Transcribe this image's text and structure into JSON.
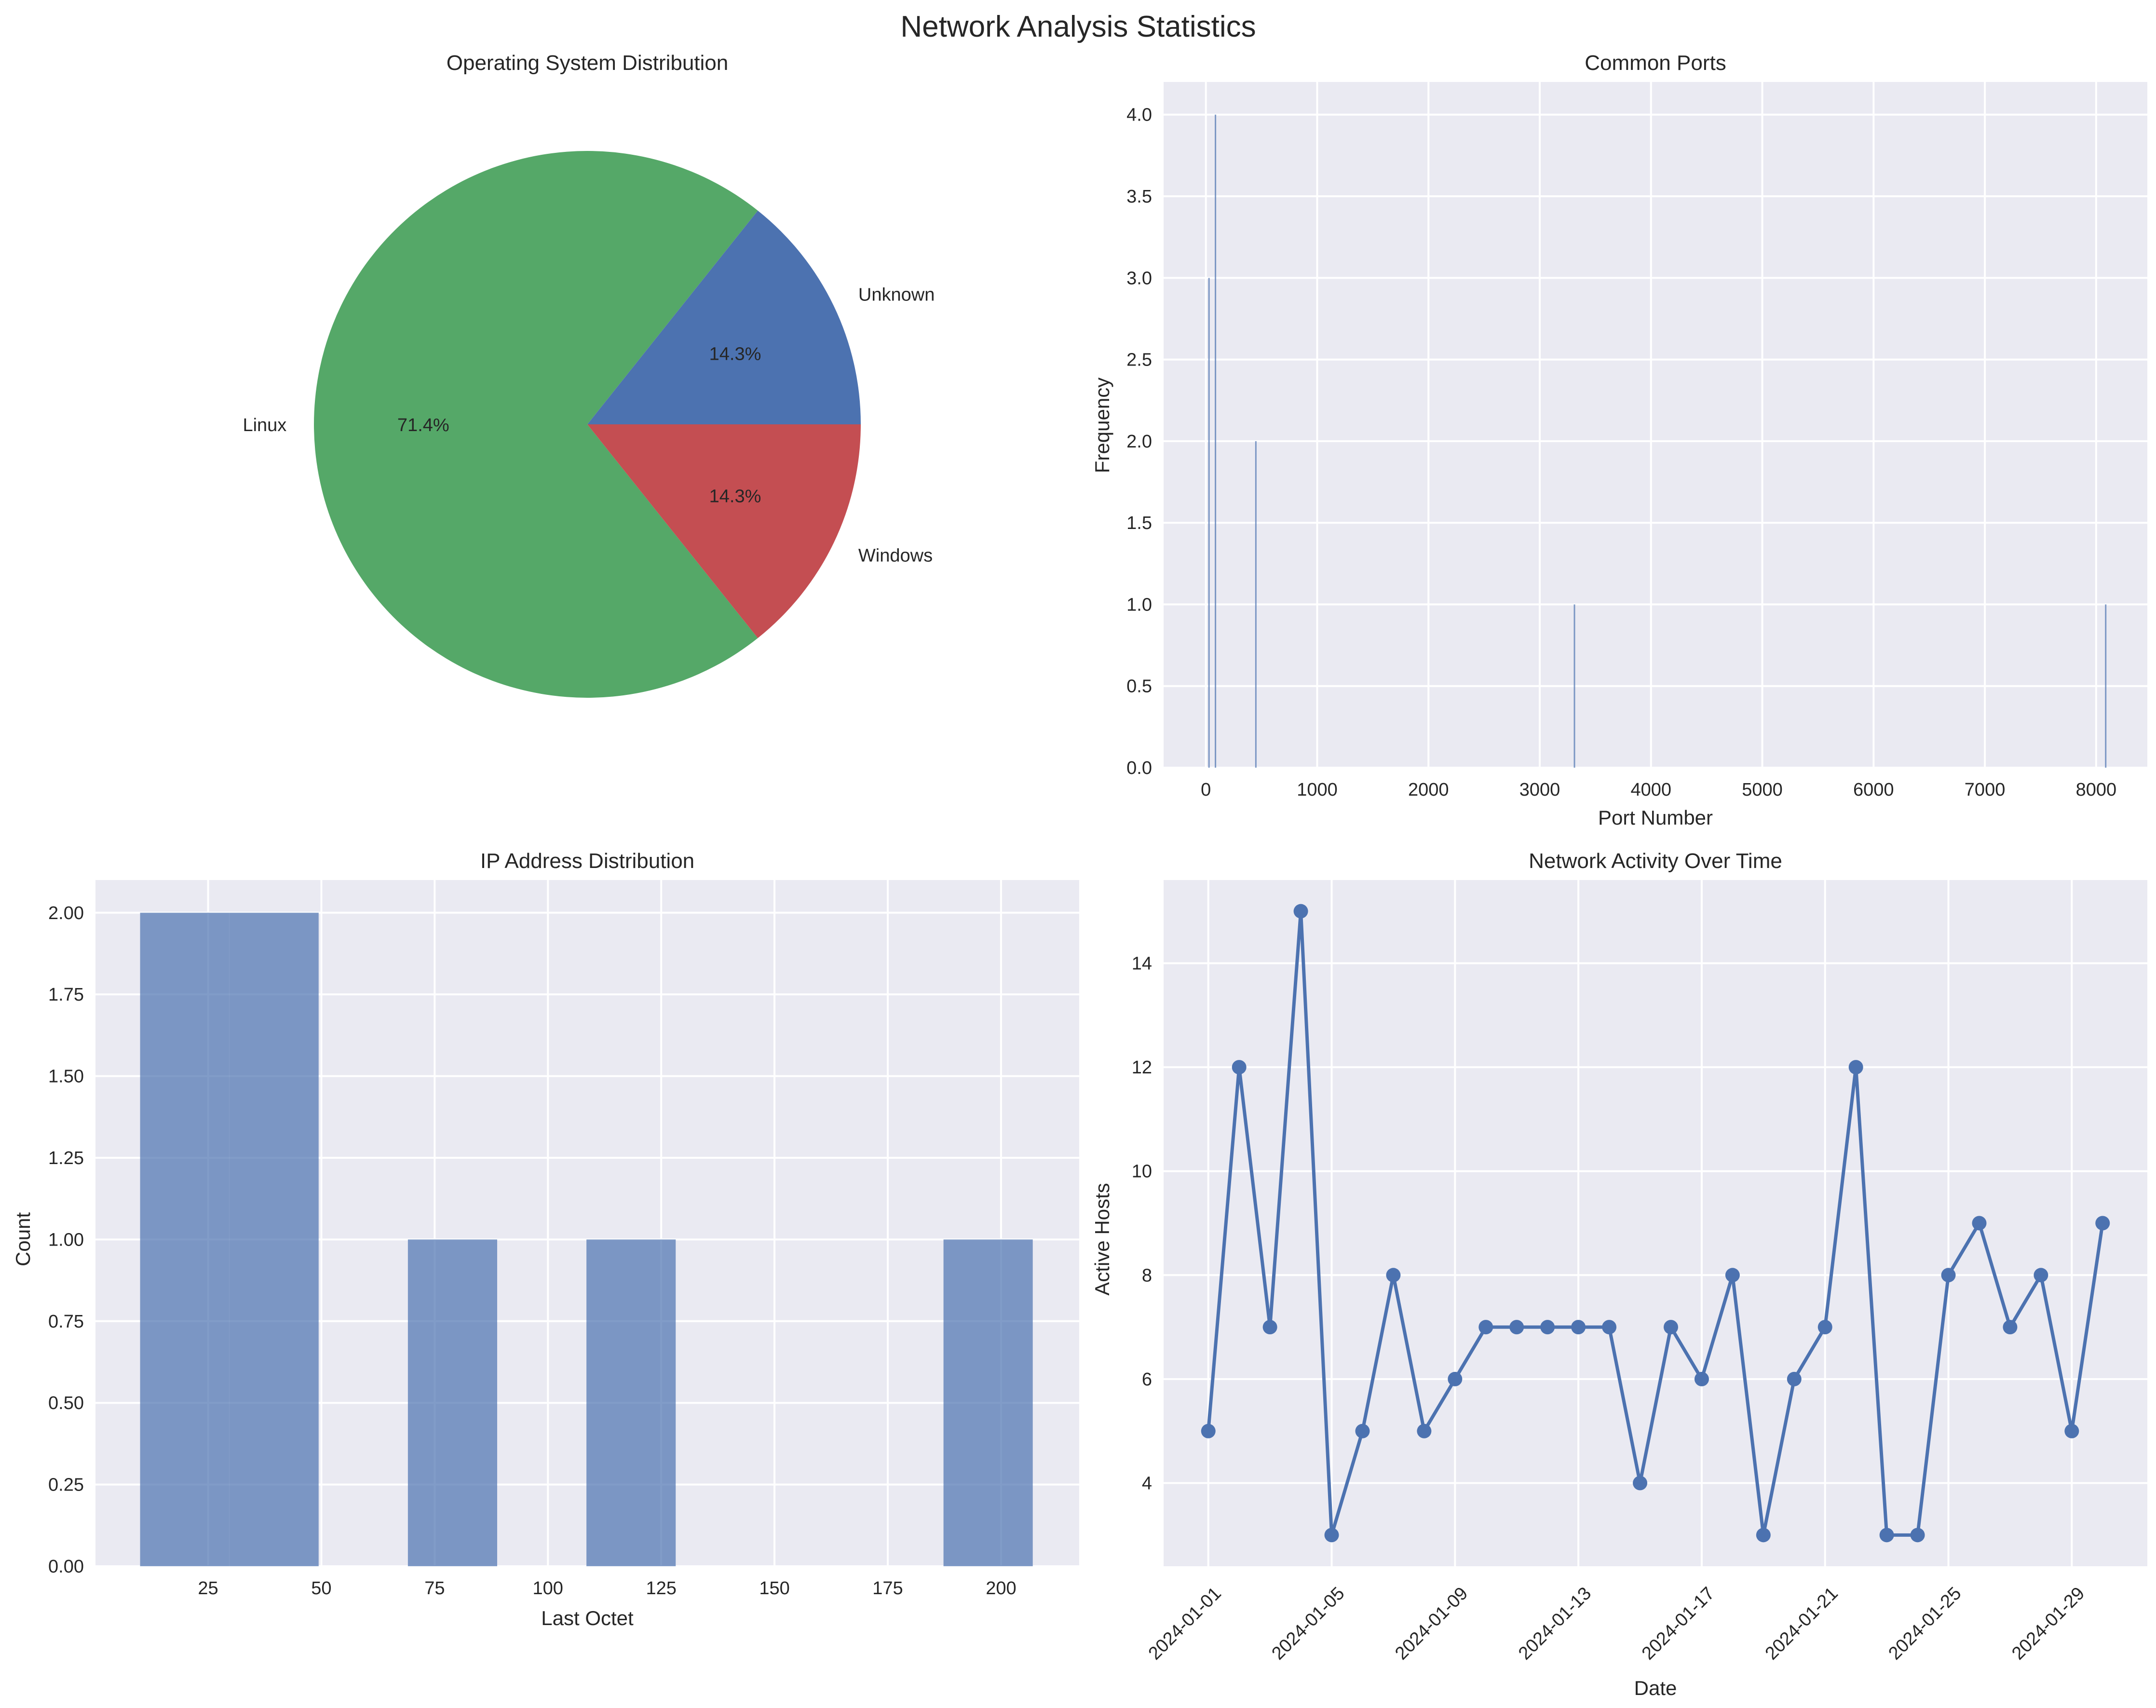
{
  "figure_title": "Network Analysis Statistics",
  "colors": {
    "panel_bg": "#EAEAF2",
    "grid": "#FFFFFF",
    "text": "#262626",
    "blue": "#4C72B0",
    "green": "#55A868",
    "red": "#C44E52"
  },
  "chart_data": [
    {
      "type": "pie",
      "title": "Operating System Distribution",
      "labels": [
        "Unknown",
        "Linux",
        "Windows"
      ],
      "values": [
        1,
        5,
        1
      ],
      "autopct": [
        "14.3%",
        "71.4%",
        "14.3%"
      ],
      "colors": [
        "#4C72B0",
        "#55A868",
        "#C44E52"
      ],
      "start_angle": 0
    },
    {
      "type": "bar",
      "title": "Common Ports",
      "xlabel": "Port Number",
      "ylabel": "Frequency",
      "xlim": [
        -380,
        8460
      ],
      "ylim": [
        0,
        4.2
      ],
      "xticks": [
        0,
        1000,
        2000,
        3000,
        4000,
        5000,
        6000,
        7000,
        8000
      ],
      "yticks": [
        0.0,
        0.5,
        1.0,
        1.5,
        2.0,
        2.5,
        3.0,
        3.5,
        4.0
      ],
      "ytick_labels": [
        "0.0",
        "0.5",
        "1.0",
        "1.5",
        "2.0",
        "2.5",
        "3.0",
        "3.5",
        "4.0"
      ],
      "bars": [
        {
          "x": 22,
          "value": 3
        },
        {
          "x": 80,
          "value": 4
        },
        {
          "x": 443,
          "value": 2
        },
        {
          "x": 3306,
          "value": 1
        },
        {
          "x": 8080,
          "value": 1
        }
      ],
      "bar_width": 0.8
    },
    {
      "type": "histogram",
      "title": "IP Address Distribution",
      "xlabel": "Last Octet",
      "ylabel": "Count",
      "xlim": [
        0.15,
        217.25
      ],
      "ylim": [
        0,
        2.1
      ],
      "xticks": [
        25,
        50,
        75,
        100,
        125,
        150,
        175,
        200
      ],
      "yticks": [
        0.0,
        0.25,
        0.5,
        0.75,
        1.0,
        1.25,
        1.5,
        1.75,
        2.0
      ],
      "ytick_labels": [
        "0.00",
        "0.25",
        "0.50",
        "0.75",
        "1.00",
        "1.25",
        "1.50",
        "1.75",
        "2.00"
      ],
      "bins": [
        {
          "start": 10,
          "end": 29.7,
          "count": 2
        },
        {
          "start": 29.7,
          "end": 49.4,
          "count": 2
        },
        {
          "start": 69.1,
          "end": 88.8,
          "count": 1
        },
        {
          "start": 108.5,
          "end": 128.2,
          "count": 1
        },
        {
          "start": 187.3,
          "end": 207,
          "count": 1
        }
      ]
    },
    {
      "type": "line",
      "title": "Network Activity Over Time",
      "xlabel": "Date",
      "ylabel": "Active Hosts",
      "ylim": [
        2.4,
        15.6
      ],
      "yticks": [
        4,
        6,
        8,
        10,
        12,
        14
      ],
      "ytick_labels": [
        "4",
        "6",
        "8",
        "10",
        "12",
        "14"
      ],
      "xlim_days": [
        -1.45,
        30.45
      ],
      "x_tick_days": [
        0,
        4,
        8,
        12,
        16,
        20,
        24,
        28
      ],
      "x_tick_labels": [
        "2024-01-01",
        "2024-01-05",
        "2024-01-09",
        "2024-01-13",
        "2024-01-17",
        "2024-01-21",
        "2024-01-25",
        "2024-01-29"
      ],
      "start_date": "2024-01-01",
      "values": [
        5,
        12,
        7,
        15,
        3,
        5,
        8,
        5,
        6,
        7,
        7,
        7,
        7,
        7,
        4,
        7,
        6,
        8,
        3,
        6,
        7,
        12,
        3,
        3,
        8,
        9,
        7,
        8,
        5,
        9
      ]
    }
  ]
}
